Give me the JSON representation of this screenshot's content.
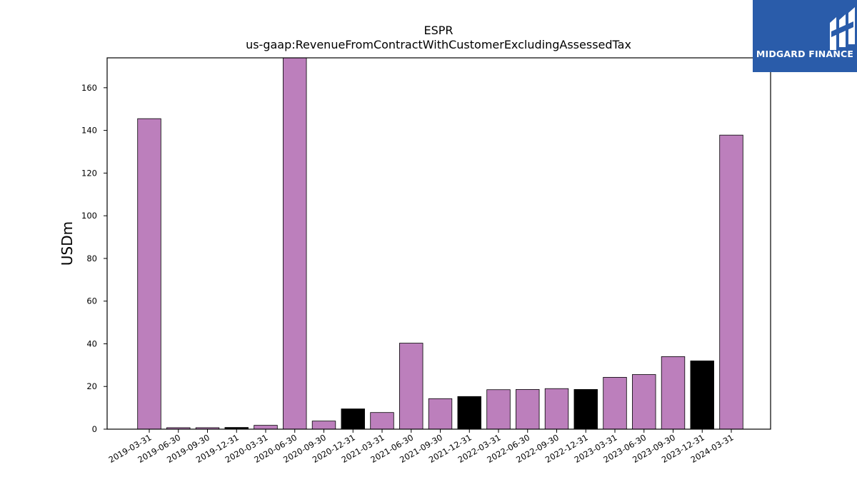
{
  "chart_data": {
    "type": "bar",
    "title": "ESPR",
    "subtitle": "us-gaap:RevenueFromContractWithCustomerExcludingAssessedTax",
    "xlabel": "",
    "ylabel": "USDm",
    "ylim": [
      0,
      174
    ],
    "yticks": [
      0,
      20,
      40,
      60,
      80,
      100,
      120,
      140,
      160
    ],
    "grid": false,
    "categories": [
      "2019-03-31",
      "2019-06-30",
      "2019-09-30",
      "2019-12-31",
      "2020-03-31",
      "2020-06-30",
      "2020-09-30",
      "2020-12-31",
      "2021-03-31",
      "2021-06-30",
      "2021-09-30",
      "2021-12-31",
      "2022-03-31",
      "2022-06-30",
      "2022-09-30",
      "2022-12-31",
      "2023-03-31",
      "2023-06-30",
      "2023-09-30",
      "2023-12-31",
      "2024-03-31"
    ],
    "values": [
      145.5,
      0.7,
      0.7,
      0.8,
      1.8,
      175,
      3.8,
      9.5,
      7.8,
      40.3,
      14.3,
      15.3,
      18.5,
      18.6,
      19.0,
      18.6,
      24.3,
      25.6,
      34.0,
      32.0,
      137.8
    ],
    "bar_colors": [
      "#bc7fbc",
      "#bc7fbc",
      "#bc7fbc",
      "#000000",
      "#bc7fbc",
      "#bc7fbc",
      "#bc7fbc",
      "#000000",
      "#bc7fbc",
      "#bc7fbc",
      "#bc7fbc",
      "#000000",
      "#bc7fbc",
      "#bc7fbc",
      "#bc7fbc",
      "#000000",
      "#bc7fbc",
      "#bc7fbc",
      "#bc7fbc",
      "#000000",
      "#bc7fbc"
    ]
  },
  "logo": {
    "text": "MIDGARD FINANCE",
    "icon": "midgard-logo-icon",
    "background": "#2a5caa"
  }
}
